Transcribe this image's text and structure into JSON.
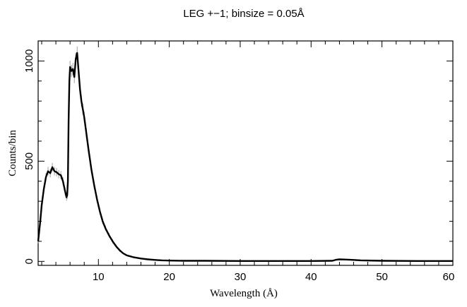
{
  "chart_data": {
    "type": "line",
    "title": "LEG +−1; binsize = 0.05Å",
    "xlabel": "Wavelength (Å)",
    "ylabel": "Counts/bin",
    "xlim": [
      1.5,
      60
    ],
    "ylim": [
      -20,
      1100
    ],
    "x_ticks": [
      10,
      20,
      30,
      40,
      50,
      60
    ],
    "y_ticks": [
      0,
      500,
      1000
    ],
    "grid": false,
    "series": [
      {
        "x": [
          1.5,
          1.8,
          2.0,
          2.3,
          2.6,
          2.9,
          3.2,
          3.5,
          3.8,
          4.1,
          4.4,
          4.7,
          5.0,
          5.3,
          5.5,
          5.6,
          5.7,
          5.8,
          5.9,
          6.0,
          6.2,
          6.4,
          6.6,
          6.8,
          7.0,
          7.2,
          7.4,
          7.6,
          7.8,
          8.0,
          8.3,
          8.6,
          9.0,
          9.4,
          9.8,
          10.2,
          10.6,
          11.0,
          11.5,
          12.0,
          12.5,
          13.0,
          13.5,
          14.0,
          15.0,
          16.0,
          17.0,
          18.0,
          19.0,
          20.0,
          22.0,
          25.0,
          30.0,
          35.0,
          40.0,
          43.0,
          43.5,
          44.0,
          45.0,
          46.0,
          47.0,
          50.0,
          55.0,
          60.0
        ],
        "y": [
          100,
          200,
          280,
          360,
          420,
          450,
          440,
          470,
          450,
          445,
          435,
          430,
          400,
          350,
          320,
          330,
          400,
          700,
          900,
          970,
          950,
          960,
          920,
          1010,
          1040,
          950,
          860,
          800,
          760,
          720,
          640,
          560,
          460,
          380,
          310,
          250,
          200,
          165,
          130,
          100,
          75,
          55,
          40,
          30,
          20,
          14,
          10,
          7,
          5,
          4,
          3,
          3,
          2,
          2,
          2,
          3,
          8,
          10,
          9,
          7,
          5,
          3,
          2,
          2
        ]
      }
    ]
  }
}
